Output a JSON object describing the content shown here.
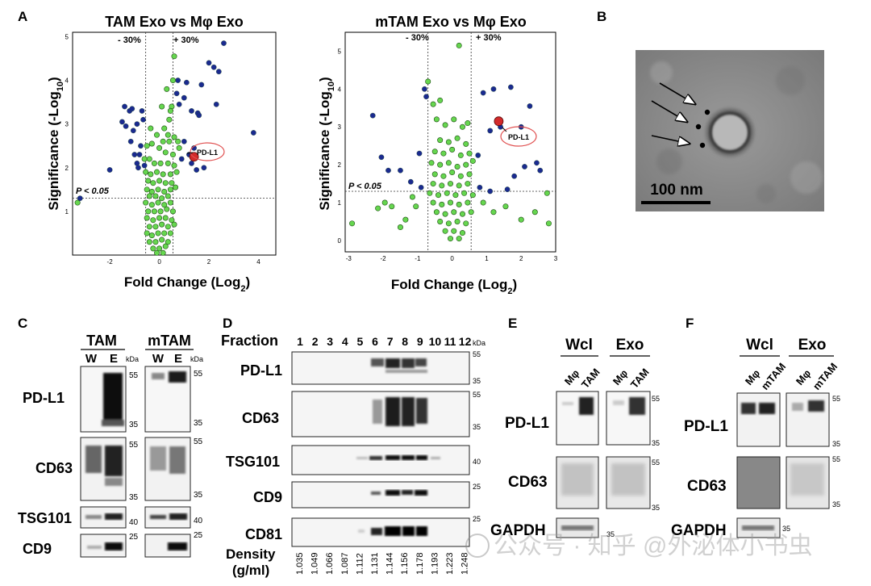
{
  "panel_letters": {
    "a": "A",
    "b": "B",
    "c": "C",
    "d": "D",
    "e": "E",
    "f": "F"
  },
  "chart_data": [
    {
      "type": "scatter",
      "title": "TAM Exo vs Mφ Exo",
      "xlabel": "Fold Change (Log2)",
      "ylabel": "Significance (-Log10)",
      "xlim": [
        -3.5,
        4.7
      ],
      "ylim": [
        0,
        5.1
      ],
      "xticks": [
        -2,
        0,
        2,
        4
      ],
      "yticks": [
        1,
        2,
        3,
        4,
        5
      ],
      "thresholds": {
        "fc_left": -0.55,
        "fc_right": 0.55,
        "p": 1.3,
        "fc_left_label": "- 30%",
        "fc_right_label": "+ 30%",
        "p_label": "P < 0.05"
      },
      "highlight": {
        "name": "PD-L1",
        "x": 1.4,
        "y": 2.25,
        "color": "#d32a2a"
      },
      "series": [
        {
          "name": "significant",
          "color": "#1a2a8f",
          "points": [
            [
              -3.2,
              1.3
            ],
            [
              -2.0,
              1.95
            ],
            [
              -1.5,
              3.05
            ],
            [
              -1.4,
              3.4
            ],
            [
              -1.35,
              2.95
            ],
            [
              -1.2,
              3.3
            ],
            [
              -1.15,
              2.6
            ],
            [
              -1.1,
              3.35
            ],
            [
              -1.05,
              2.85
            ],
            [
              -1.0,
              2.3
            ],
            [
              -0.9,
              3.0
            ],
            [
              -0.9,
              2.1
            ],
            [
              -0.85,
              2.0
            ],
            [
              -0.8,
              2.3
            ],
            [
              -0.75,
              2.5
            ],
            [
              -0.7,
              3.3
            ],
            [
              -0.65,
              3.1
            ],
            [
              -0.6,
              2.05
            ],
            [
              0.7,
              3.7
            ],
            [
              0.75,
              4.0
            ],
            [
              0.8,
              3.45
            ],
            [
              0.9,
              2.2
            ],
            [
              1.0,
              3.6
            ],
            [
              1.0,
              2.6
            ],
            [
              1.1,
              3.95
            ],
            [
              1.2,
              2.3
            ],
            [
              1.3,
              2.1
            ],
            [
              1.3,
              3.3
            ],
            [
              1.4,
              2.45
            ],
            [
              1.5,
              1.95
            ],
            [
              1.55,
              3.25
            ],
            [
              1.6,
              3.2
            ],
            [
              1.7,
              3.9
            ],
            [
              1.8,
              2.0
            ],
            [
              2.0,
              4.4
            ],
            [
              2.2,
              4.3
            ],
            [
              2.3,
              3.45
            ],
            [
              2.4,
              4.2
            ],
            [
              2.6,
              4.85
            ],
            [
              3.8,
              2.8
            ]
          ]
        },
        {
          "name": "not_significant",
          "color": "#66d64f",
          "points": [
            [
              -3.3,
              1.2
            ],
            [
              0.6,
              4.55
            ],
            [
              0.55,
              4.0
            ],
            [
              0.3,
              3.8
            ],
            [
              0.5,
              3.4
            ],
            [
              0.45,
              3.3
            ],
            [
              0.4,
              3.1
            ],
            [
              0.1,
              3.4
            ],
            [
              0.2,
              2.9
            ],
            [
              0.35,
              2.75
            ],
            [
              -0.35,
              2.9
            ],
            [
              -0.1,
              2.75
            ],
            [
              0.15,
              2.6
            ],
            [
              0.4,
              2.6
            ],
            [
              0.6,
              2.7
            ],
            [
              0.75,
              2.6
            ],
            [
              0.8,
              2.45
            ],
            [
              -0.5,
              2.5
            ],
            [
              -0.3,
              2.55
            ],
            [
              0.0,
              2.45
            ],
            [
              0.25,
              2.35
            ],
            [
              0.55,
              2.3
            ],
            [
              -0.6,
              2.2
            ],
            [
              -0.4,
              2.2
            ],
            [
              -0.2,
              2.1
            ],
            [
              0.05,
              2.1
            ],
            [
              0.35,
              2.1
            ],
            [
              0.6,
              2.05
            ],
            [
              -0.55,
              1.9
            ],
            [
              -0.35,
              1.85
            ],
            [
              -0.1,
              1.9
            ],
            [
              0.15,
              1.85
            ],
            [
              0.45,
              1.85
            ],
            [
              0.7,
              1.9
            ],
            [
              -0.45,
              1.7
            ],
            [
              -0.25,
              1.65
            ],
            [
              0.0,
              1.7
            ],
            [
              0.25,
              1.65
            ],
            [
              0.5,
              1.65
            ],
            [
              -0.5,
              1.5
            ],
            [
              -0.3,
              1.45
            ],
            [
              -0.05,
              1.5
            ],
            [
              0.2,
              1.45
            ],
            [
              0.45,
              1.5
            ],
            [
              0.65,
              1.55
            ],
            [
              -0.4,
              1.35
            ],
            [
              -0.15,
              1.35
            ],
            [
              0.1,
              1.3
            ],
            [
              0.35,
              1.35
            ],
            [
              -0.55,
              1.2
            ],
            [
              -0.3,
              1.15
            ],
            [
              -0.05,
              1.2
            ],
            [
              0.2,
              1.15
            ],
            [
              0.45,
              1.2
            ],
            [
              -0.45,
              1.0
            ],
            [
              -0.2,
              1.0
            ],
            [
              0.05,
              1.0
            ],
            [
              0.3,
              1.05
            ],
            [
              0.55,
              1.0
            ],
            [
              -0.5,
              0.85
            ],
            [
              -0.25,
              0.8
            ],
            [
              0.0,
              0.85
            ],
            [
              0.25,
              0.85
            ],
            [
              0.5,
              0.8
            ],
            [
              -0.4,
              0.65
            ],
            [
              -0.15,
              0.65
            ],
            [
              0.1,
              0.7
            ],
            [
              0.35,
              0.65
            ],
            [
              0.6,
              0.7
            ],
            [
              -0.5,
              0.5
            ],
            [
              -0.3,
              0.45
            ],
            [
              -0.05,
              0.5
            ],
            [
              0.2,
              0.5
            ],
            [
              0.45,
              0.5
            ],
            [
              -0.4,
              0.3
            ],
            [
              -0.15,
              0.3
            ],
            [
              0.1,
              0.35
            ],
            [
              0.35,
              0.3
            ],
            [
              -0.25,
              0.15
            ],
            [
              0.0,
              0.15
            ],
            [
              0.25,
              0.2
            ],
            [
              -0.1,
              0.05
            ],
            [
              0.15,
              0.05
            ]
          ]
        }
      ]
    },
    {
      "type": "scatter",
      "title": "mTAM Exo vs Mφ Exo",
      "xlabel": "Fold Change (Log2)",
      "ylabel": "Significance (-Log10)",
      "xlim": [
        -3.1,
        3.0
      ],
      "ylim": [
        -0.3,
        5.5
      ],
      "xticks": [
        -3,
        -2,
        -1,
        0,
        1,
        2,
        3
      ],
      "yticks": [
        0,
        1,
        2,
        3,
        4,
        5
      ],
      "thresholds": {
        "fc_left": -0.7,
        "fc_right": 0.55,
        "p": 1.3,
        "fc_left_label": "- 30%",
        "fc_right_label": "+ 30%",
        "p_label": "P < 0.05"
      },
      "highlight": {
        "name": "PD-L1",
        "x": 1.35,
        "y": 3.15,
        "color": "#d32a2a"
      },
      "series": [
        {
          "name": "significant",
          "color": "#1a2a8f",
          "points": [
            [
              -2.3,
              3.3
            ],
            [
              -2.05,
              2.2
            ],
            [
              -1.85,
              1.85
            ],
            [
              -1.5,
              1.85
            ],
            [
              -1.2,
              1.55
            ],
            [
              -0.95,
              2.3
            ],
            [
              -0.9,
              1.4
            ],
            [
              -0.75,
              3.8
            ],
            [
              -0.8,
              4.0
            ],
            [
              0.75,
              2.25
            ],
            [
              0.8,
              1.4
            ],
            [
              0.9,
              3.9
            ],
            [
              1.1,
              1.3
            ],
            [
              1.1,
              2.9
            ],
            [
              1.2,
              4.0
            ],
            [
              1.4,
              3.0
            ],
            [
              1.6,
              1.35
            ],
            [
              1.7,
              4.05
            ],
            [
              1.8,
              1.7
            ],
            [
              2.0,
              3.0
            ],
            [
              2.1,
              1.95
            ],
            [
              2.25,
              3.55
            ],
            [
              2.45,
              2.05
            ],
            [
              2.55,
              1.85
            ]
          ]
        },
        {
          "name": "not_significant",
          "color": "#66d64f",
          "points": [
            [
              -2.9,
              0.45
            ],
            [
              -2.15,
              0.85
            ],
            [
              -1.95,
              1.0
            ],
            [
              -1.75,
              0.9
            ],
            [
              -1.5,
              0.35
            ],
            [
              -1.35,
              0.55
            ],
            [
              -1.15,
              1.15
            ],
            [
              -1.05,
              0.9
            ],
            [
              -0.7,
              4.2
            ],
            [
              -0.55,
              3.6
            ],
            [
              -0.35,
              3.7
            ],
            [
              0.2,
              5.15
            ],
            [
              -0.45,
              3.2
            ],
            [
              -0.2,
              3.05
            ],
            [
              0.05,
              3.2
            ],
            [
              0.3,
              3.0
            ],
            [
              0.45,
              3.1
            ],
            [
              -0.35,
              2.65
            ],
            [
              -0.1,
              2.6
            ],
            [
              0.15,
              2.7
            ],
            [
              0.4,
              2.55
            ],
            [
              -0.5,
              2.35
            ],
            [
              -0.25,
              2.3
            ],
            [
              0.0,
              2.4
            ],
            [
              0.25,
              2.25
            ],
            [
              0.5,
              2.3
            ],
            [
              -0.6,
              2.05
            ],
            [
              -0.35,
              2.0
            ],
            [
              -0.1,
              2.05
            ],
            [
              0.15,
              1.95
            ],
            [
              0.4,
              2.0
            ],
            [
              0.6,
              2.1
            ],
            [
              -0.5,
              1.75
            ],
            [
              -0.25,
              1.7
            ],
            [
              0.0,
              1.8
            ],
            [
              0.25,
              1.7
            ],
            [
              0.5,
              1.75
            ],
            [
              -0.55,
              1.5
            ],
            [
              -0.3,
              1.45
            ],
            [
              -0.05,
              1.5
            ],
            [
              0.2,
              1.45
            ],
            [
              0.45,
              1.5
            ],
            [
              -0.65,
              1.25
            ],
            [
              -0.4,
              1.2
            ],
            [
              -0.15,
              1.25
            ],
            [
              0.1,
              1.2
            ],
            [
              0.35,
              1.25
            ],
            [
              0.6,
              1.2
            ],
            [
              -0.55,
              1.0
            ],
            [
              -0.3,
              0.95
            ],
            [
              -0.05,
              1.0
            ],
            [
              0.2,
              0.95
            ],
            [
              0.45,
              1.0
            ],
            [
              -0.45,
              0.75
            ],
            [
              -0.2,
              0.7
            ],
            [
              0.05,
              0.75
            ],
            [
              0.3,
              0.7
            ],
            [
              0.55,
              0.75
            ],
            [
              -0.35,
              0.5
            ],
            [
              -0.1,
              0.45
            ],
            [
              0.15,
              0.5
            ],
            [
              0.4,
              0.45
            ],
            [
              -0.2,
              0.25
            ],
            [
              0.05,
              0.25
            ],
            [
              0.3,
              0.2
            ],
            [
              -0.05,
              0.05
            ],
            [
              0.2,
              0.05
            ],
            [
              0.9,
              1.0
            ],
            [
              1.2,
              0.75
            ],
            [
              1.55,
              0.9
            ],
            [
              2.0,
              0.55
            ],
            [
              2.4,
              0.75
            ],
            [
              2.8,
              0.45
            ],
            [
              2.75,
              1.25
            ]
          ]
        }
      ]
    }
  ],
  "panel_b": {
    "scale_label": "100 nm"
  },
  "panel_c": {
    "col_groups": [
      "TAM",
      "mTAM"
    ],
    "lanes": [
      "W",
      "E",
      "W",
      "E"
    ],
    "kda": "kDa",
    "rows": [
      {
        "label": "PD-L1",
        "markers": [
          "55",
          "35"
        ]
      },
      {
        "label": "CD63",
        "markers": [
          "55",
          "35"
        ]
      },
      {
        "label": "TSG101",
        "markers": [
          "40"
        ]
      },
      {
        "label": "CD9",
        "markers": [
          "25"
        ]
      }
    ]
  },
  "panel_d": {
    "fraction_label": "Fraction",
    "fractions": [
      "1",
      "2",
      "3",
      "4",
      "5",
      "6",
      "7",
      "8",
      "9",
      "10",
      "11",
      "12"
    ],
    "kda": "kDa",
    "rows": [
      {
        "label": "PD-L1",
        "markers": [
          "55",
          "35"
        ]
      },
      {
        "label": "CD63",
        "markers": [
          "55",
          "35"
        ]
      },
      {
        "label": "TSG101",
        "markers": [
          "40"
        ]
      },
      {
        "label": "CD9",
        "markers": [
          "25"
        ]
      },
      {
        "label": "CD81",
        "markers": [
          "25"
        ]
      }
    ],
    "density_label_1": "Density",
    "density_label_2": "(g/ml)",
    "densities": [
      "1.035",
      "1.049",
      "1.066",
      "1.087",
      "1.112",
      "1.131",
      "1.144",
      "1.156",
      "1.178",
      "1.193",
      "1.223",
      "1.248"
    ]
  },
  "panel_e": {
    "groups": [
      "Wcl",
      "Exo"
    ],
    "lanes": [
      "Mφ",
      "TAM",
      "Mφ",
      "TAM"
    ],
    "rows": [
      {
        "label": "PD-L1",
        "markers": [
          "55",
          "35"
        ]
      },
      {
        "label": "CD63",
        "markers": [
          "55",
          "35"
        ]
      },
      {
        "label": "GAPDH",
        "markers": [
          "35"
        ]
      }
    ]
  },
  "panel_f": {
    "groups": [
      "Wcl",
      "Exo"
    ],
    "lanes": [
      "Mφ",
      "mTAM",
      "Mφ",
      "mTAM"
    ],
    "rows": [
      {
        "label": "PD-L1",
        "markers": [
          "55",
          "35"
        ]
      },
      {
        "label": "CD63",
        "markers": [
          "55",
          "35"
        ]
      },
      {
        "label": "GAPDH",
        "markers": [
          "35"
        ]
      }
    ]
  },
  "watermark": "公众号 · 知乎 @外泌体小书虫"
}
